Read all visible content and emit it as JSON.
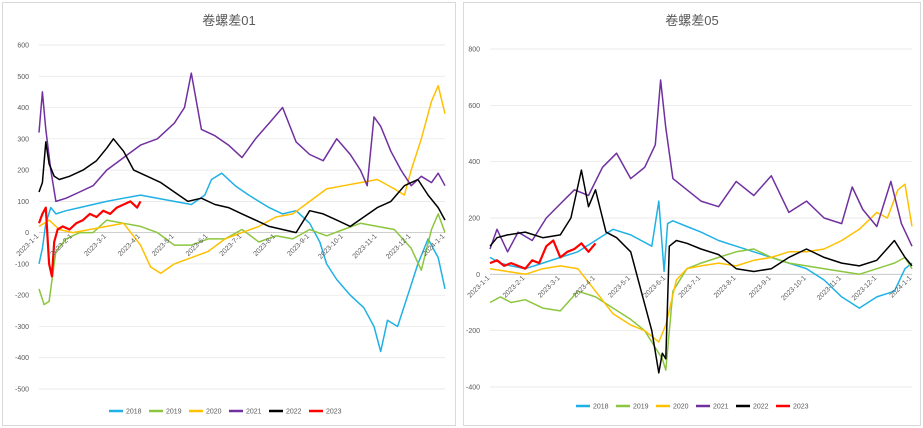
{
  "chart_data": [
    {
      "type": "line",
      "title": "卷螺差01",
      "ylim": [
        -500,
        600
      ],
      "yticks": [
        "600",
        "500",
        "400",
        "300",
        "200",
        "100",
        "0",
        "-100",
        "-200",
        "-300",
        "-400",
        "-500"
      ],
      "ytick_values": [
        600,
        500,
        400,
        300,
        200,
        100,
        0,
        -100,
        -200,
        -300,
        -400,
        -500
      ],
      "x_range": [
        0,
        12
      ],
      "xticks": [
        "2023-1-1",
        "2023-2-1",
        "2023-3-1",
        "2023-4-1",
        "2023-5-1",
        "2023-6-1",
        "2023-7-1",
        "2023-8-1",
        "2023-9-1",
        "2023-10-1",
        "2023-11-1",
        "2023-12-1",
        "2024-1-1"
      ],
      "xtick_values": [
        0,
        1,
        2,
        3,
        4,
        5,
        6,
        7,
        8,
        9,
        10,
        11,
        12
      ],
      "legend_position": "bottom",
      "series": [
        {
          "name": "2018",
          "color": "#1fb1e6",
          "x": [
            0,
            0.1,
            0.2,
            0.35,
            0.5,
            0.8,
            1.2,
            1.6,
            2.0,
            2.5,
            3.0,
            3.5,
            4.0,
            4.5,
            4.9,
            5.1,
            5.4,
            5.8,
            6.2,
            6.5,
            6.8,
            7.2,
            7.6,
            8.0,
            8.3,
            8.5,
            8.8,
            9.2,
            9.6,
            9.9,
            10.1,
            10.3,
            10.6,
            10.9,
            11.2,
            11.5,
            11.8,
            12.0
          ],
          "values": [
            -100,
            -50,
            30,
            80,
            60,
            70,
            80,
            90,
            100,
            110,
            120,
            110,
            100,
            90,
            120,
            170,
            190,
            150,
            120,
            100,
            80,
            60,
            70,
            30,
            -30,
            -100,
            -150,
            -200,
            -240,
            -300,
            -380,
            -280,
            -300,
            -200,
            -100,
            -20,
            -80,
            -180
          ]
        },
        {
          "name": "2019",
          "color": "#8cc63f",
          "x": [
            0,
            0.15,
            0.3,
            0.5,
            0.8,
            1.2,
            1.6,
            2.0,
            2.5,
            3.0,
            3.5,
            4.0,
            4.5,
            5.0,
            5.5,
            6.0,
            6.5,
            7.0,
            7.5,
            8.0,
            8.5,
            9.0,
            9.5,
            10.0,
            10.5,
            11.0,
            11.3,
            11.6,
            11.8,
            12.0
          ],
          "values": [
            -180,
            -230,
            -220,
            -60,
            -20,
            0,
            0,
            40,
            30,
            20,
            0,
            -40,
            -40,
            -20,
            -20,
            10,
            -30,
            -10,
            -20,
            10,
            -10,
            10,
            30,
            20,
            10,
            -50,
            -120,
            10,
            60,
            0
          ]
        },
        {
          "name": "2020",
          "color": "#ffc000",
          "x": [
            0,
            0.3,
            0.6,
            1.0,
            1.5,
            2.0,
            2.5,
            3.0,
            3.3,
            3.6,
            4.0,
            4.5,
            5.0,
            5.5,
            6.0,
            6.5,
            7.0,
            7.5,
            8.0,
            8.5,
            9.0,
            9.5,
            10.0,
            10.5,
            10.8,
            11.0,
            11.3,
            11.6,
            11.8,
            12.0
          ],
          "values": [
            20,
            40,
            10,
            0,
            10,
            20,
            30,
            -40,
            -110,
            -130,
            -100,
            -80,
            -60,
            -20,
            0,
            20,
            50,
            60,
            100,
            140,
            150,
            160,
            170,
            140,
            120,
            200,
            300,
            420,
            470,
            380
          ]
        },
        {
          "name": "2021",
          "color": "#7030a0",
          "x": [
            0,
            0.1,
            0.2,
            0.35,
            0.5,
            0.8,
            1.2,
            1.6,
            2.0,
            2.5,
            3.0,
            3.5,
            4.0,
            4.3,
            4.5,
            4.8,
            5.2,
            5.6,
            6.0,
            6.4,
            6.8,
            7.2,
            7.6,
            8.0,
            8.4,
            8.8,
            9.2,
            9.5,
            9.7,
            9.9,
            10.1,
            10.4,
            10.7,
            11.0,
            11.3,
            11.6,
            11.8,
            12.0
          ],
          "values": [
            320,
            450,
            330,
            200,
            100,
            110,
            130,
            150,
            200,
            240,
            280,
            300,
            350,
            400,
            510,
            330,
            310,
            280,
            240,
            300,
            350,
            400,
            290,
            250,
            230,
            300,
            250,
            200,
            150,
            370,
            340,
            260,
            200,
            150,
            180,
            160,
            190,
            150
          ]
        },
        {
          "name": "2022",
          "color": "#000000",
          "x": [
            0,
            0.1,
            0.2,
            0.3,
            0.45,
            0.6,
            0.9,
            1.3,
            1.7,
            2.0,
            2.2,
            2.5,
            2.8,
            3.2,
            3.6,
            4.0,
            4.4,
            4.8,
            5.2,
            5.6,
            6.0,
            6.4,
            6.8,
            7.2,
            7.6,
            8.0,
            8.4,
            8.8,
            9.2,
            9.6,
            10.0,
            10.4,
            10.8,
            11.2,
            11.5,
            11.8,
            12.0
          ],
          "values": [
            130,
            160,
            290,
            220,
            180,
            170,
            180,
            200,
            230,
            270,
            300,
            260,
            200,
            180,
            160,
            130,
            100,
            110,
            90,
            80,
            60,
            40,
            20,
            10,
            0,
            70,
            60,
            40,
            20,
            50,
            80,
            100,
            150,
            170,
            120,
            80,
            40
          ]
        },
        {
          "name": "2023",
          "color": "#ff0000",
          "x": [
            0,
            0.1,
            0.2,
            0.3,
            0.38,
            0.45,
            0.55,
            0.7,
            0.9,
            1.1,
            1.3,
            1.5,
            1.7,
            1.9,
            2.1,
            2.3,
            2.5,
            2.7,
            2.9,
            3.0
          ],
          "values": [
            30,
            60,
            80,
            -100,
            -140,
            -30,
            10,
            20,
            10,
            30,
            40,
            60,
            50,
            70,
            60,
            80,
            90,
            100,
            80,
            100
          ]
        }
      ]
    },
    {
      "type": "line",
      "title": "卷螺差05",
      "ylim": [
        -400,
        800
      ],
      "yticks": [
        "800",
        "600",
        "400",
        "200",
        "0",
        "-200",
        "-400"
      ],
      "ytick_values": [
        800,
        600,
        400,
        200,
        0,
        -200,
        -400
      ],
      "x_range": [
        0,
        12
      ],
      "xticks": [
        "2023-1-1",
        "2023-2-1",
        "2023-3-1",
        "2023-4-1",
        "2023-5-1",
        "2023-6-1",
        "2023-7-1",
        "2023-8-1",
        "2023-9-1",
        "2023-10-1",
        "2023-11-1",
        "2023-12-1",
        "2024-1-1"
      ],
      "xtick_values": [
        0,
        1,
        2,
        3,
        4,
        5,
        6,
        7,
        8,
        9,
        10,
        11,
        12
      ],
      "legend_position": "bottom",
      "series": [
        {
          "name": "2018",
          "color": "#1fb1e6",
          "x": [
            0,
            0.3,
            0.6,
            1.0,
            1.5,
            2.0,
            2.5,
            3.0,
            3.5,
            4.0,
            4.3,
            4.6,
            4.8,
            4.95,
            5.05,
            5.2,
            5.6,
            6.0,
            6.5,
            7.0,
            7.5,
            8.0,
            8.5,
            9.0,
            9.5,
            10.0,
            10.5,
            11.0,
            11.5,
            11.8,
            12.0
          ],
          "values": [
            60,
            40,
            30,
            20,
            40,
            60,
            80,
            120,
            160,
            140,
            120,
            100,
            260,
            10,
            180,
            190,
            170,
            150,
            120,
            100,
            80,
            60,
            40,
            20,
            -20,
            -80,
            -120,
            -80,
            -60,
            20,
            40
          ]
        },
        {
          "name": "2019",
          "color": "#8cc63f",
          "x": [
            0,
            0.3,
            0.6,
            1.0,
            1.5,
            2.0,
            2.5,
            3.0,
            3.5,
            4.0,
            4.4,
            4.7,
            4.9,
            5.0,
            5.2,
            5.6,
            6.0,
            6.5,
            7.0,
            7.5,
            8.0,
            8.5,
            9.0,
            9.5,
            10.0,
            10.5,
            11.0,
            11.5,
            11.8,
            12.0
          ],
          "values": [
            -100,
            -80,
            -100,
            -90,
            -120,
            -130,
            -60,
            -80,
            -120,
            -160,
            -200,
            -260,
            -300,
            -340,
            -60,
            20,
            40,
            60,
            80,
            90,
            60,
            40,
            30,
            20,
            10,
            0,
            20,
            40,
            60,
            20
          ]
        },
        {
          "name": "2020",
          "color": "#ffc000",
          "x": [
            0,
            0.5,
            1.0,
            1.5,
            2.0,
            2.5,
            3.0,
            3.5,
            4.0,
            4.4,
            4.8,
            5.0,
            5.3,
            5.6,
            6.0,
            6.5,
            7.0,
            7.5,
            8.0,
            8.5,
            9.0,
            9.5,
            10.0,
            10.5,
            11.0,
            11.3,
            11.6,
            11.8,
            12.0
          ],
          "values": [
            20,
            10,
            0,
            20,
            30,
            20,
            -60,
            -140,
            -180,
            -200,
            -240,
            -180,
            -20,
            20,
            30,
            40,
            30,
            50,
            60,
            80,
            80,
            90,
            120,
            160,
            220,
            200,
            300,
            320,
            170
          ]
        },
        {
          "name": "2021",
          "color": "#7030a0",
          "x": [
            0,
            0.2,
            0.5,
            0.8,
            1.2,
            1.6,
            2.0,
            2.4,
            2.8,
            3.2,
            3.6,
            4.0,
            4.4,
            4.7,
            4.85,
            5.0,
            5.2,
            5.6,
            6.0,
            6.5,
            7.0,
            7.5,
            8.0,
            8.5,
            9.0,
            9.5,
            10.0,
            10.3,
            10.6,
            11.0,
            11.4,
            11.7,
            12.0
          ],
          "values": [
            90,
            160,
            80,
            150,
            120,
            200,
            250,
            300,
            280,
            380,
            430,
            340,
            380,
            460,
            690,
            520,
            340,
            300,
            260,
            240,
            330,
            280,
            350,
            220,
            260,
            200,
            180,
            310,
            230,
            170,
            330,
            180,
            100
          ]
        },
        {
          "name": "2022",
          "color": "#000000",
          "x": [
            0,
            0.2,
            0.5,
            1.0,
            1.5,
            2.0,
            2.3,
            2.6,
            2.8,
            3.0,
            3.3,
            3.6,
            4.0,
            4.3,
            4.6,
            4.8,
            4.9,
            5.0,
            5.1,
            5.3,
            5.6,
            6.0,
            6.5,
            7.0,
            7.5,
            8.0,
            8.5,
            9.0,
            9.5,
            10.0,
            10.5,
            11.0,
            11.5,
            11.8,
            12.0
          ],
          "values": [
            100,
            130,
            140,
            150,
            130,
            140,
            200,
            370,
            240,
            300,
            150,
            130,
            80,
            -60,
            -200,
            -350,
            -280,
            -300,
            100,
            120,
            110,
            90,
            70,
            20,
            10,
            20,
            60,
            90,
            60,
            40,
            30,
            50,
            120,
            60,
            30
          ]
        },
        {
          "name": "2023",
          "color": "#ff0000",
          "x": [
            0,
            0.2,
            0.4,
            0.6,
            0.8,
            1.0,
            1.2,
            1.4,
            1.6,
            1.8,
            2.0,
            2.2,
            2.4,
            2.6,
            2.8,
            3.0
          ],
          "values": [
            40,
            50,
            30,
            40,
            30,
            20,
            50,
            40,
            100,
            120,
            60,
            80,
            90,
            110,
            80,
            110
          ]
        }
      ]
    }
  ]
}
